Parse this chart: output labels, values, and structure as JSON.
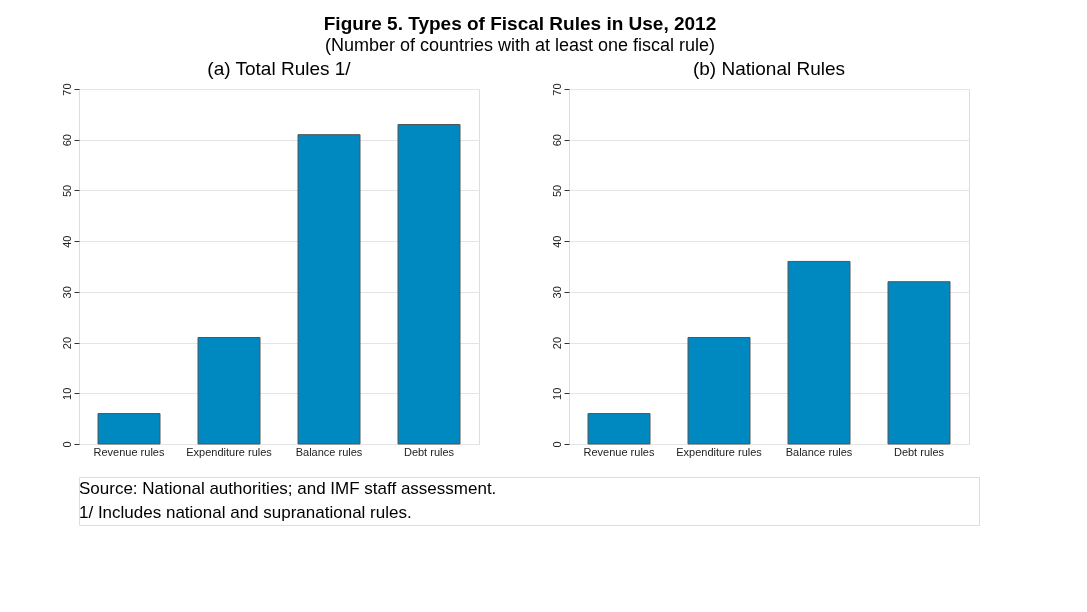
{
  "chart_data": [
    {
      "type": "other",
      "title": "Figure 5. Types of Fiscal Rules in Use, 2012",
      "subtitle": "(Number of countries with at least one fiscal rule)",
      "annotations": [
        "Source: National authorities; and IMF staff assessment.",
        "1/ Includes national and supranational rules."
      ]
    },
    {
      "type": "bar",
      "title": "(a) Total Rules 1/",
      "categories": [
        "Revenue rules",
        "Expenditure rules",
        "Balance rules",
        "Debt rules"
      ],
      "values": [
        6,
        21,
        61,
        63
      ],
      "color": "#0088c0",
      "ylim": [
        0,
        70
      ],
      "yticks": [
        0,
        10,
        20,
        30,
        40,
        50,
        60,
        70
      ],
      "grid": "y"
    },
    {
      "type": "bar",
      "title": "(b) National Rules",
      "categories": [
        "Revenue rules",
        "Expenditure rules",
        "Balance rules",
        "Debt rules"
      ],
      "values": [
        6,
        21,
        36,
        32
      ],
      "color": "#0088c0",
      "ylim": [
        0,
        70
      ],
      "yticks": [
        0,
        10,
        20,
        30,
        40,
        50,
        60,
        70
      ],
      "grid": "y"
    }
  ]
}
